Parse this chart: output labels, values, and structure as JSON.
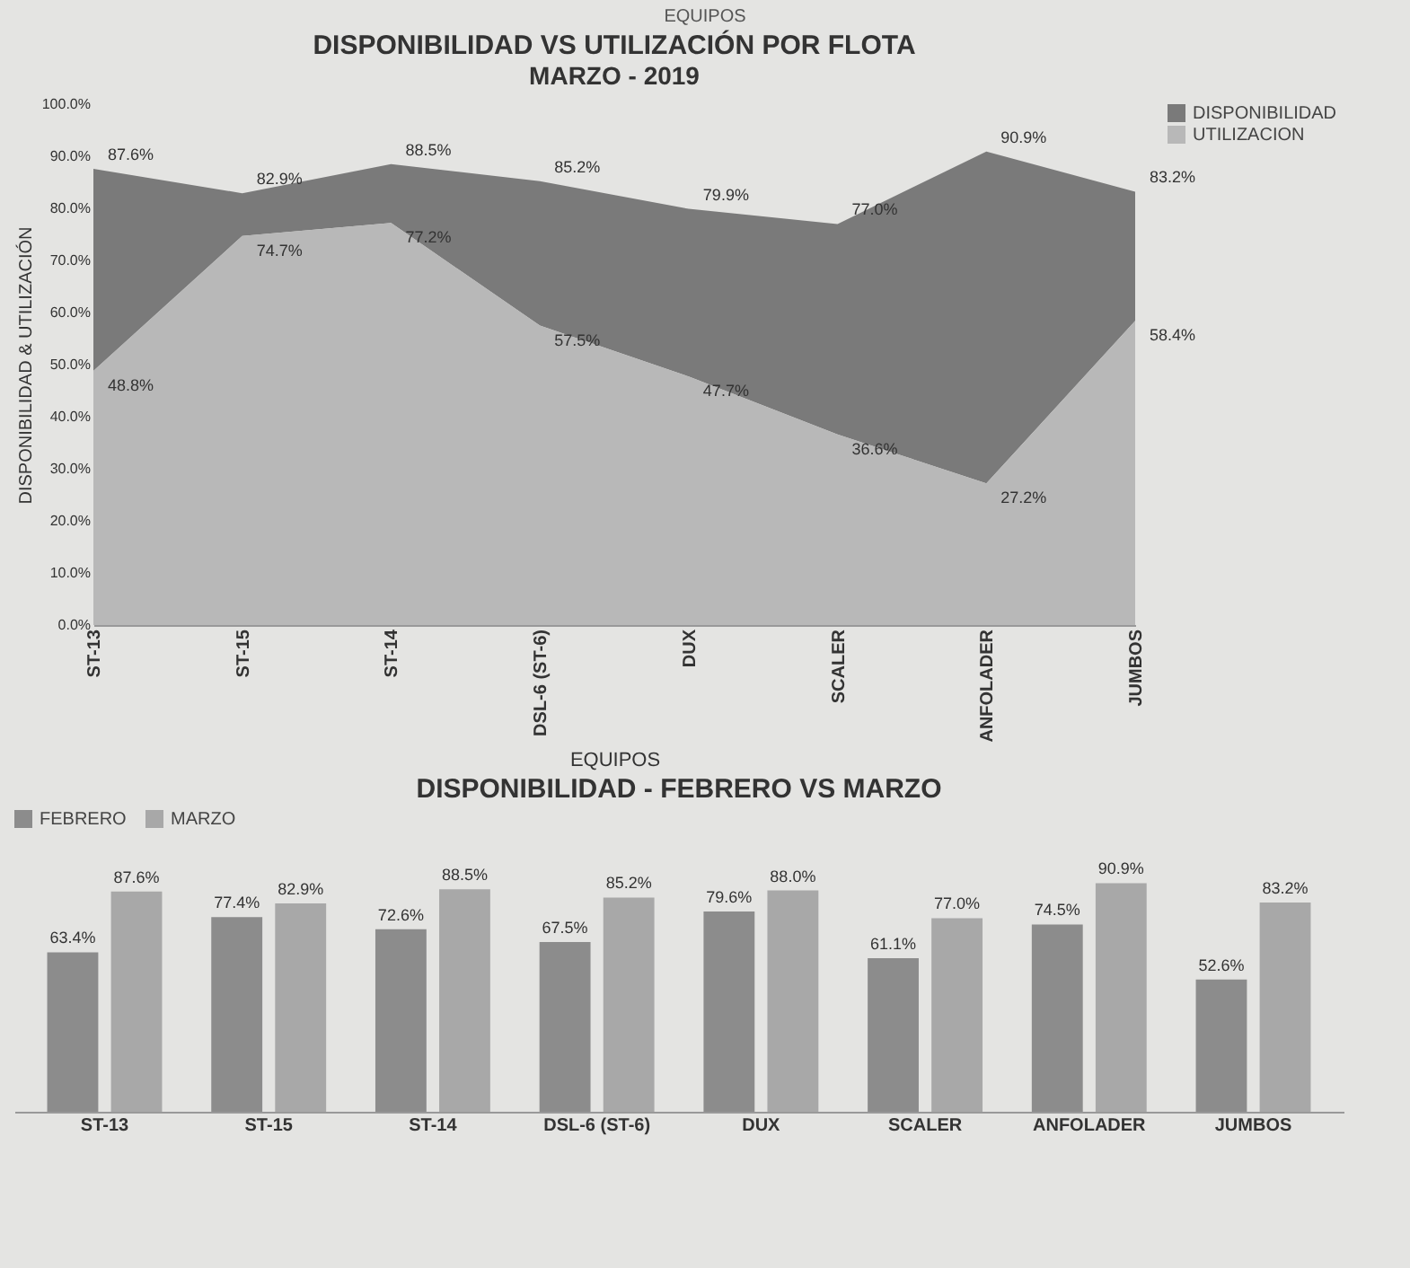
{
  "chart_data": [
    {
      "type": "area",
      "title": "DISPONIBILIDAD VS UTILIZACIÓN POR FLOTA",
      "subtitle": "MARZO - 2019",
      "xlabel": "EQUIPOS",
      "ylabel": "DISPONIBILIDAD & UTILIZACIÓN",
      "annotations": [
        "EQUIPOS"
      ],
      "categories": [
        "ST-13",
        "ST-15",
        "ST-14",
        "DSL-6 (ST-6)",
        "DUX",
        "SCALER",
        "ANFOLADER",
        "JUMBOS"
      ],
      "series": [
        {
          "name": "DISPONIBILIDAD",
          "color": "#7a7a7a",
          "values": [
            87.6,
            82.9,
            88.5,
            85.2,
            79.9,
            77.0,
            90.9,
            83.2
          ],
          "value_labels": [
            "87.6%",
            "82.9%",
            "88.5%",
            "85.2%",
            "79.9%",
            "77.0%",
            "90.9%",
            "83.2%"
          ]
        },
        {
          "name": "UTILIZACION",
          "color": "#b8b8b8",
          "values": [
            48.8,
            74.7,
            77.2,
            57.5,
            47.7,
            36.6,
            27.2,
            58.4
          ],
          "value_labels": [
            "48.8%",
            "74.7%",
            "77.2%",
            "57.5%",
            "47.7%",
            "36.6%",
            "27.2%",
            "58.4%"
          ]
        }
      ],
      "ylim": [
        0,
        100
      ],
      "yticks": [
        {
          "value": 0,
          "label": "0.0%"
        },
        {
          "value": 10,
          "label": "10.0%"
        },
        {
          "value": 20,
          "label": "20.0%"
        },
        {
          "value": 30,
          "label": "30.0%"
        },
        {
          "value": 40,
          "label": "40.0%"
        },
        {
          "value": 50,
          "label": "50.0%"
        },
        {
          "value": 60,
          "label": "60.0%"
        },
        {
          "value": 70,
          "label": "70.0%"
        },
        {
          "value": 80,
          "label": "80.0%"
        },
        {
          "value": 90,
          "label": "90.0%"
        },
        {
          "value": 100,
          "label": "100.0%"
        }
      ],
      "legend": "right"
    },
    {
      "type": "bar",
      "title": "DISPONIBILIDAD - FEBRERO VS MARZO",
      "categories": [
        "ST-13",
        "ST-15",
        "ST-14",
        "DSL-6 (ST-6)",
        "DUX",
        "SCALER",
        "ANFOLADER",
        "JUMBOS"
      ],
      "series": [
        {
          "name": "FEBRERO",
          "color": "#8c8c8c",
          "values": [
            63.4,
            77.4,
            72.6,
            67.5,
            79.6,
            61.1,
            74.5,
            52.6
          ],
          "value_labels": [
            "63.4%",
            "77.4%",
            "72.6%",
            "67.5%",
            "79.6%",
            "61.1%",
            "74.5%",
            "52.6%"
          ]
        },
        {
          "name": "MARZO",
          "color": "#a8a8a8",
          "values": [
            87.6,
            82.9,
            88.5,
            85.2,
            88.0,
            77.0,
            90.9,
            83.2
          ],
          "value_labels": [
            "87.6%",
            "82.9%",
            "88.5%",
            "85.2%",
            "88.0%",
            "77.0%",
            "90.9%",
            "83.2%"
          ]
        }
      ],
      "tick_labels": "x",
      "legend": "top"
    }
  ]
}
